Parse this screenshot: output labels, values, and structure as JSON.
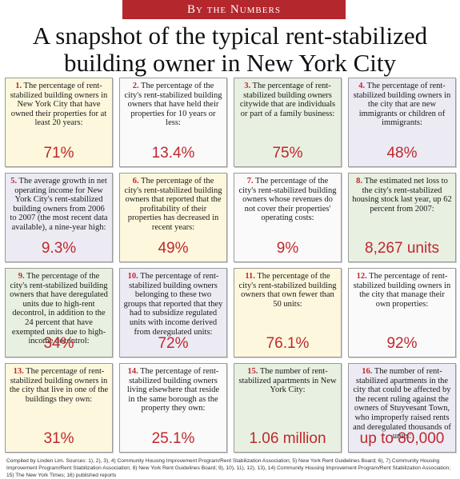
{
  "banner": "By the Numbers",
  "headline_line1": "A snapshot of the typical rent-stabilized",
  "headline_line2": "building owner in New York City",
  "cards": [
    {
      "num": "1.",
      "text": "The percentage of rent-stabilized building owners in New York City that have owned their properties for at least 20 years:",
      "value": "71%"
    },
    {
      "num": "2.",
      "text": "The percentage of the city's rent-stabilized building owners that have held their properties for 10 years or less:",
      "value": "13.4%"
    },
    {
      "num": "3.",
      "text": "The percentage of rent-stabilized building owners citywide that are individuals or part of a family business:",
      "value": "75%"
    },
    {
      "num": "4.",
      "text": "The percentage of rent-stabilized building owners in the city that are new immigrants or children of immigrants:",
      "value": "48%"
    },
    {
      "num": "5.",
      "text": "The average growth in net operating income for New York City's rent-stabilized building owners from 2006 to 2007 (the most recent data available), a nine-year high:",
      "value": "9.3%"
    },
    {
      "num": "6.",
      "text": "The percentage of the city's rent-stabilized building owners that reported that the profitability of their properties has decreased in recent years:",
      "value": "49%"
    },
    {
      "num": "7.",
      "text": "The percentage of the city's rent-stabilized building owners whose revenues do not cover their properties' operating costs:",
      "value": "9%"
    },
    {
      "num": "8.",
      "text": "The estimated net loss to the city's rent-stabilized housing stock last year, up 62 percent from 2007:",
      "value": "8,267 units"
    },
    {
      "num": "9.",
      "text": "The percentage of the city's rent-stabilized building owners that have deregulated units due to high-rent decontrol, in addition to the 24 percent that have exempted units due to high-income decontrol:",
      "value": "34%"
    },
    {
      "num": "10.",
      "text": "The percentage of rent-stabilized building owners belonging to these two groups that reported that they had to subsidize regulated units with income derived from deregulated units:",
      "value": "72%"
    },
    {
      "num": "11.",
      "text": "The percentage of the city's rent-stabilized building owners that own fewer than 50 units:",
      "value": "76.1%"
    },
    {
      "num": "12.",
      "text": "The percentage of rent-stabilized building owners in the city that manage their own properties:",
      "value": "92%"
    },
    {
      "num": "13.",
      "text": "The percentage of rent-stabilized building owners in the city that live in one of the buildings they own:",
      "value": "31%"
    },
    {
      "num": "14.",
      "text": "The percentage of rent-stabilized building owners living elsewhere that reside in the same borough as the property they own:",
      "value": "25.1%"
    },
    {
      "num": "15.",
      "text": "The number of rent-stabilized apartments in New York City:",
      "value": "1.06 million"
    },
    {
      "num": "16.",
      "text": "The number of rent-stabilized apartments in the city that could be affected by the recent ruling against the owners of Stuyvesant Town, who improperly raised rents and deregulated thousands of units:",
      "value": "up to 80,000"
    }
  ],
  "colors": {
    "banner": "#b3272d",
    "accent_red": "#c0272d",
    "card_yellow": "#fdf8dd",
    "card_green": "#e8f0e1",
    "card_lilac": "#ecebf4"
  },
  "sources": "Compiled by Linden Lim. Sources: 1), 2), 3), 4) Community Housing Improvement Program/Rent Stabilization Association; 5) New York Rent Guidelines Board; 6), 7) Community Housing Improvement Program/Rent Stabilization Association; 8) New York Rent Guidelines Board; 9), 10), 11), 12), 13), 14) Community Housing Improvement Program/Rent Stabilization Association; 15) The New York Times; 16) published reports"
}
